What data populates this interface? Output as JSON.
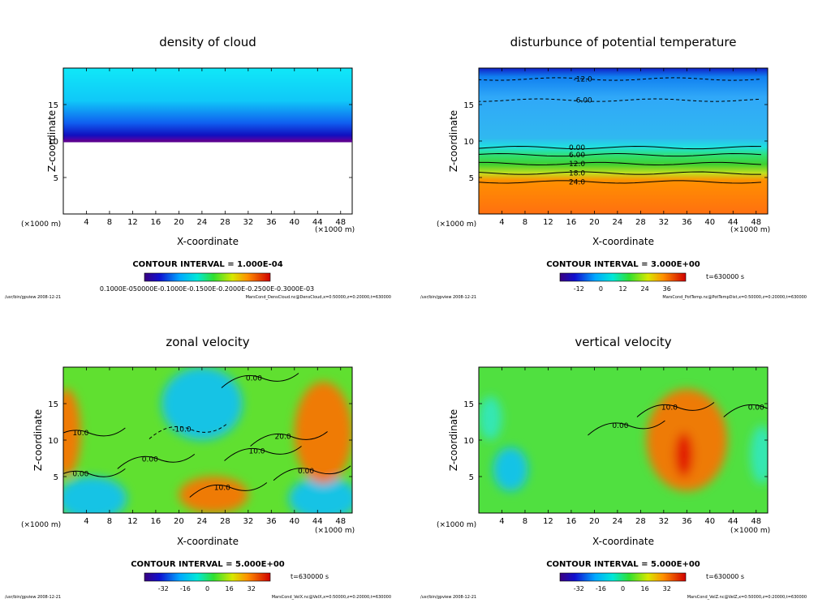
{
  "figure": {
    "footer_left_path": "/usr/bin/gpview",
    "footer_date": "2008-12-21"
  },
  "chart_data": [
    {
      "type": "heatmap",
      "id": "p1",
      "title": "density of cloud",
      "xlabel": "X-coordinate",
      "ylabel": "Z-coordinate",
      "x_unit": "(×1000 m)",
      "xlim": [
        0,
        50
      ],
      "ylim": [
        0,
        20
      ],
      "xticks": [
        4,
        8,
        12,
        16,
        20,
        24,
        28,
        32,
        36,
        40,
        44,
        48
      ],
      "yticks": [
        5,
        10,
        15
      ],
      "contour_interval": "CONTOUR INTERVAL = 1.000E-04",
      "time": "",
      "colorbar_labels": [
        "0.1000E-05",
        "0.5000E-04",
        "0.1000E-03",
        "0.1500E-03",
        "0.2000E-03",
        "0.2500E-03",
        "0.3000E-03"
      ],
      "colorbar_text": "0.1000E-050000E-0.1000E-0.1500E-0.2000E-0.2500E-0.3000E-03",
      "footer_right": "MarsCond_DensCloud.nc@DensCloud,x=0:50000,z=0:20000,t=630000",
      "cloud_base_z": 10,
      "contours": []
    },
    {
      "type": "heatmap",
      "id": "p2",
      "title": "disturbunce of potential temperature",
      "xlabel": "X-coordinate",
      "ylabel": "Z-coordinate",
      "x_unit": "(×1000 m)",
      "xlim": [
        0,
        50
      ],
      "ylim": [
        0,
        20
      ],
      "xticks": [
        4,
        8,
        12,
        16,
        20,
        24,
        28,
        32,
        36,
        40,
        44,
        48
      ],
      "yticks": [
        5,
        10,
        15
      ],
      "contour_interval": "CONTOUR INTERVAL = 3.000E+00",
      "time": "t=630000  s",
      "colorbar_labels": [
        "-12",
        "0",
        "12",
        "24",
        "36"
      ],
      "footer_right": "MarsCond_PotTemp.nc@PotTempDist,x=0:50000,z=0:20000,t=630000",
      "contours": [
        {
          "label": "-12.0",
          "z": 18.5,
          "x": 18
        },
        {
          "label": "-6.00",
          "z": 15.6,
          "x": 18
        },
        {
          "label": "0.00",
          "z": 9.1,
          "x": 17
        },
        {
          "label": "6.00",
          "z": 8.1,
          "x": 17
        },
        {
          "label": "12.0",
          "z": 6.9,
          "x": 17
        },
        {
          "label": "18.0",
          "z": 5.6,
          "x": 17
        },
        {
          "label": "24.0",
          "z": 4.4,
          "x": 17
        }
      ]
    },
    {
      "type": "heatmap",
      "id": "p3",
      "title": "zonal velocity",
      "xlabel": "X-coordinate",
      "ylabel": "Z-coordinate",
      "x_unit": "(×1000 m)",
      "xlim": [
        0,
        50
      ],
      "ylim": [
        0,
        20
      ],
      "xticks": [
        4,
        8,
        12,
        16,
        20,
        24,
        28,
        32,
        36,
        40,
        44,
        48
      ],
      "yticks": [
        5,
        10,
        15
      ],
      "contour_interval": "CONTOUR INTERVAL = 5.000E+00",
      "time": "t=630000  s",
      "colorbar_labels": [
        "-32",
        "-16",
        "0",
        "16",
        "32"
      ],
      "footer_right": "MarsCond_VelX.nc@VelX,x=0:50000,z=0:20000,t=630000",
      "blobs": [
        {
          "x": 24,
          "z": 15,
          "rx": 7,
          "rz": 5,
          "value": -14
        },
        {
          "x": 5,
          "z": 2,
          "rx": 6,
          "rz": 3,
          "value": -22
        },
        {
          "x": 45,
          "z": 2,
          "rx": 6,
          "rz": 3,
          "value": -22
        },
        {
          "x": 45,
          "z": 11,
          "rx": 5,
          "rz": 7,
          "value": 24
        },
        {
          "x": 0.5,
          "z": 11,
          "rx": 2.5,
          "rz": 6,
          "value": 18
        },
        {
          "x": 26,
          "z": 2.5,
          "rx": 6,
          "rz": 2.5,
          "value": 20
        }
      ],
      "contours": [
        {
          "label": "-10.0",
          "z": 11.5,
          "x": 20.5
        },
        {
          "label": "0.00",
          "z": 18.5,
          "x": 33
        },
        {
          "label": "10.0",
          "z": 11,
          "x": 3
        },
        {
          "label": "0.00",
          "z": 7.4,
          "x": 15
        },
        {
          "label": "0.00",
          "z": 5.4,
          "x": 3
        },
        {
          "label": "20.0",
          "z": 10.5,
          "x": 38
        },
        {
          "label": "10.0",
          "z": 8.5,
          "x": 33.5
        },
        {
          "label": "10.0",
          "z": 3.5,
          "x": 27.5
        },
        {
          "label": "0.00",
          "z": 5.8,
          "x": 42
        }
      ]
    },
    {
      "type": "heatmap",
      "id": "p4",
      "title": "vertical velocity",
      "xlabel": "X-coordinate",
      "ylabel": "Z-coordinate",
      "x_unit": "(×1000 m)",
      "xlim": [
        0,
        50
      ],
      "ylim": [
        0,
        20
      ],
      "xticks": [
        4,
        8,
        12,
        16,
        20,
        24,
        28,
        32,
        36,
        40,
        44,
        48
      ],
      "yticks": [
        5,
        10,
        15
      ],
      "contour_interval": "CONTOUR INTERVAL = 5.000E+00",
      "time": "t=630000  s",
      "colorbar_labels": [
        "-32",
        "-16",
        "0",
        "16",
        "32"
      ],
      "footer_right": "MarsCond_VelZ.nc@VelZ,x=0:50000,z=0:20000,t=630000",
      "blobs": [
        {
          "x": 36,
          "z": 10,
          "rx": 7,
          "rz": 7,
          "value": 18
        },
        {
          "x": 35.5,
          "z": 8,
          "rx": 1.5,
          "rz": 3,
          "value": 32
        },
        {
          "x": 5.5,
          "z": 6,
          "rx": 3,
          "rz": 3,
          "value": -14
        },
        {
          "x": 2,
          "z": 13,
          "rx": 2,
          "rz": 3,
          "value": -8
        },
        {
          "x": 49,
          "z": 8,
          "rx": 2,
          "rz": 4,
          "value": -8
        }
      ],
      "contours": [
        {
          "label": "10.0",
          "z": 14.5,
          "x": 33
        },
        {
          "label": "0.00",
          "z": 12,
          "x": 24.5
        },
        {
          "label": "0.00",
          "z": 14.5,
          "x": 48
        }
      ]
    }
  ]
}
